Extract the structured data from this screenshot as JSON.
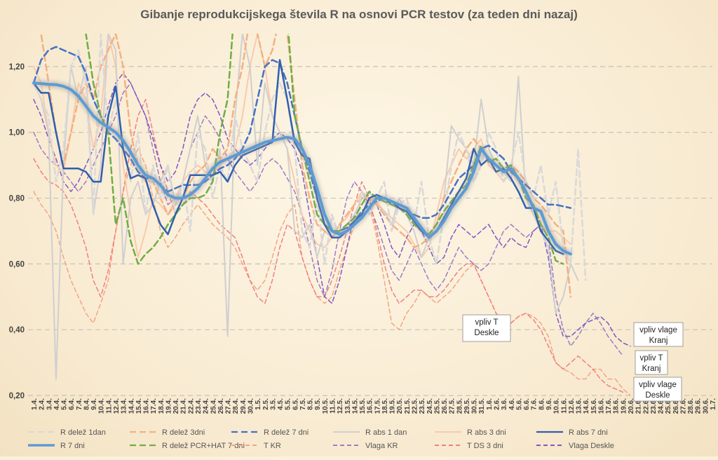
{
  "chart_data": {
    "type": "line",
    "title": "Gibanje reprodukcijskega števila R na osnovi PCR testov (za teden dni nazaj)",
    "ylim": [
      0.2,
      1.3
    ],
    "yticks": [
      0.2,
      0.4,
      0.6,
      0.8,
      1.0,
      1.2
    ],
    "ytick_labels": [
      "0,20",
      "0,40",
      "0,60",
      "0,80",
      "1,00",
      "1,20"
    ],
    "grid": "horizontal dashed",
    "x_labels": [
      "1.4.",
      "2.4.",
      "3.4.",
      "4.4.",
      "5.4.",
      "6.4.",
      "7.4.",
      "8.4.",
      "9.4.",
      "10.4.",
      "11.4.",
      "12.4.",
      "13.4.",
      "14.4.",
      "15.4.",
      "16.4.",
      "17.4.",
      "18.4.",
      "19.4.",
      "20.4.",
      "21.4.",
      "22.4.",
      "23.4.",
      "24.4.",
      "25.4.",
      "26.4.",
      "27.4.",
      "28.4.",
      "29.4.",
      "30.4.",
      "1.5.",
      "2.5.",
      "3.5.",
      "4.5.",
      "5.5.",
      "6.5.",
      "7.5.",
      "8.5.",
      "9.5.",
      "10.5.",
      "11.5.",
      "12.5.",
      "13.5.",
      "14.5.",
      "15.5.",
      "16.5.",
      "17.5.",
      "18.5.",
      "19.5.",
      "20.5.",
      "21.5.",
      "22.5.",
      "23.5.",
      "24.5.",
      "25.5.",
      "26.5.",
      "27.5.",
      "28.5.",
      "29.5.",
      "30.5.",
      "31.5.",
      "1.6.",
      "2.6.",
      "3.6.",
      "4.6.",
      "5.6.",
      "6.6.",
      "7.6.",
      "8.6.",
      "9.6.",
      "10.6.",
      "11.6.",
      "12.6.",
      "13.6.",
      "14.6.",
      "15.6.",
      "16.6.",
      "17.6.",
      "18.6.",
      "19.6.",
      "20.6.",
      "21.6.",
      "22.6.",
      "23.6.",
      "24.6.",
      "25.6.",
      "26.6.",
      "27.6.",
      "28.6.",
      "29.6.",
      "30.6.",
      "1.7."
    ],
    "legend_position": "bottom",
    "series": [
      {
        "name": "R delež 1dan",
        "color": "#d9d9d9",
        "dash": "dash",
        "width": 2.5,
        "values": [
          1.15,
          1.1,
          1.05,
          0.85,
          0.95,
          1.2,
          1.25,
          1.15,
          0.75,
          1.3,
          1.0,
          1.1,
          0.95,
          0.85,
          1.0,
          0.75,
          0.9,
          0.8,
          0.9,
          0.75,
          0.85,
          0.7,
          1.0,
          0.95,
          0.8,
          0.9,
          0.85,
          1.05,
          0.95,
          0.9,
          0.85,
          1.0,
          1.1,
          1.15,
          1.1,
          0.95,
          0.7,
          0.65,
          0.8,
          0.6,
          0.75,
          0.68,
          0.7,
          0.72,
          0.82,
          0.75,
          0.8,
          0.85,
          0.7,
          0.78,
          0.8,
          0.72,
          0.85,
          0.68,
          0.6,
          0.75,
          0.9,
          1.0,
          0.95,
          0.85,
          0.9,
          1.0,
          0.95,
          0.85,
          0.9,
          1.0,
          0.85,
          0.8,
          0.9,
          0.75,
          0.85,
          0.65,
          0.6,
          0.95,
          0.55
        ]
      },
      {
        "name": "R delež 3dni",
        "color": "#f4b183",
        "dash": "dash",
        "width": 2.5,
        "values": [
          1.35,
          1.3,
          1.15,
          1.0,
          0.9,
          1.0,
          1.1,
          1.15,
          1.1,
          1.2,
          1.25,
          1.3,
          1.2,
          1.0,
          0.9,
          0.85,
          0.85,
          0.8,
          0.75,
          0.78,
          0.8,
          0.85,
          0.88,
          0.9,
          0.95,
          0.92,
          0.95,
          1.1,
          1.2,
          1.35,
          1.3,
          1.2,
          1.25,
          1.35,
          1.3,
          1.1,
          0.9,
          0.8,
          0.72,
          0.7,
          0.68,
          0.72,
          0.75,
          0.78,
          0.8,
          0.8,
          0.78,
          0.75,
          0.72,
          0.7,
          0.68,
          0.65,
          0.66,
          0.68,
          0.72,
          0.8,
          0.85,
          0.9,
          0.95,
          0.98,
          0.95,
          0.92,
          0.9,
          0.88,
          0.9,
          0.88,
          0.85,
          0.8,
          0.78,
          0.75,
          0.72,
          0.7,
          0.5
        ]
      },
      {
        "name": "R delež 7 dni",
        "color": "#4472c4",
        "dash": "dash",
        "width": 2.5,
        "values": [
          1.15,
          1.22,
          1.25,
          1.26,
          1.25,
          1.24,
          1.23,
          1.18,
          1.1,
          1.05,
          1.0,
          0.98,
          0.95,
          0.92,
          0.88,
          0.86,
          0.86,
          0.84,
          0.82,
          0.83,
          0.84,
          0.84,
          0.84,
          0.85,
          0.87,
          0.89,
          0.9,
          0.92,
          0.95,
          1.0,
          1.1,
          1.2,
          1.22,
          1.21,
          1.15,
          1.05,
          0.95,
          0.88,
          0.8,
          0.72,
          0.7,
          0.7,
          0.71,
          0.73,
          0.76,
          0.78,
          0.79,
          0.8,
          0.78,
          0.77,
          0.76,
          0.75,
          0.74,
          0.74,
          0.75,
          0.78,
          0.82,
          0.86,
          0.88,
          0.9,
          0.95,
          0.96,
          0.94,
          0.92,
          0.88,
          0.86,
          0.84,
          0.82,
          0.8,
          0.78,
          0.78,
          0.775,
          0.77
        ]
      },
      {
        "name": "R abs 1 dan",
        "color": "#cfcfcf",
        "dash": "solid",
        "width": 2,
        "values": [
          1.15,
          1.1,
          1.0,
          0.25,
          0.9,
          1.2,
          1.1,
          1.2,
          0.75,
          0.9,
          1.3,
          1.25,
          0.6,
          0.8,
          0.85,
          0.75,
          0.78,
          0.85,
          0.9,
          0.78,
          0.85,
          0.95,
          1.05,
          0.9,
          0.85,
          0.95,
          0.38,
          1.05,
          1.3,
          1.2,
          0.9,
          1.15,
          1.05,
          1.0,
          0.95,
          0.7,
          0.68,
          0.72,
          0.62,
          0.7,
          0.68,
          0.7,
          0.72,
          0.75,
          0.8,
          0.82,
          0.78,
          0.76,
          0.72,
          0.8,
          0.75,
          0.7,
          0.62,
          0.68,
          0.72,
          0.8,
          1.02,
          0.98,
          0.95,
          0.9,
          1.1,
          0.95,
          0.9,
          0.88,
          0.85,
          1.17,
          0.8,
          0.75,
          0.7,
          0.65,
          0.45,
          0.5,
          0.6,
          0.55
        ]
      },
      {
        "name": "R abs 3 dni",
        "color": "#f8cbad",
        "dash": "solid",
        "width": 2,
        "values": [
          1.2,
          1.15,
          1.0,
          0.9,
          0.88,
          1.0,
          1.15,
          1.1,
          0.95,
          1.05,
          1.3,
          1.2,
          0.9,
          0.75,
          0.62,
          0.7,
          0.8,
          0.78,
          0.75,
          0.8,
          0.85,
          0.88,
          0.9,
          0.88,
          0.87,
          0.9,
          0.92,
          0.95,
          1.05,
          1.2,
          1.3,
          1.2,
          1.05,
          1.0,
          0.95,
          0.85,
          0.75,
          0.7,
          0.66,
          0.65,
          0.68,
          0.72,
          0.74,
          0.78,
          0.82,
          0.8,
          0.79,
          0.76,
          0.74,
          0.72,
          0.7,
          0.66,
          0.62,
          0.65,
          0.75,
          0.85,
          0.9,
          0.95,
          0.92,
          0.95,
          0.98,
          0.9,
          0.88,
          0.85,
          0.88,
          0.85,
          0.82,
          0.78,
          0.72,
          0.7,
          0.7,
          0.68,
          0.66
        ]
      },
      {
        "name": "R abs 7 dni",
        "color": "#2e5fae",
        "dash": "solid",
        "width": 2.5,
        "values": [
          1.15,
          1.12,
          1.12,
          1.0,
          0.89,
          0.89,
          0.89,
          0.88,
          0.85,
          0.85,
          1.05,
          1.14,
          0.95,
          0.86,
          0.87,
          0.86,
          0.78,
          0.72,
          0.69,
          0.75,
          0.8,
          0.87,
          0.87,
          0.87,
          0.87,
          0.88,
          0.85,
          0.9,
          0.93,
          0.94,
          0.95,
          0.96,
          0.97,
          1.22,
          1.1,
          0.97,
          0.93,
          0.92,
          0.8,
          0.72,
          0.68,
          0.68,
          0.7,
          0.73,
          0.75,
          0.8,
          0.81,
          0.8,
          0.79,
          0.77,
          0.76,
          0.73,
          0.7,
          0.68,
          0.7,
          0.74,
          0.78,
          0.82,
          0.86,
          0.95,
          0.9,
          0.92,
          0.88,
          0.89,
          0.86,
          0.82,
          0.77,
          0.77,
          0.7,
          0.67,
          0.64,
          0.63
        ]
      },
      {
        "name": "R 7 dni",
        "color": "#5b9bd5",
        "dash": "solid",
        "width": 4,
        "glow": true,
        "values": [
          1.15,
          1.148,
          1.146,
          1.145,
          1.14,
          1.13,
          1.11,
          1.08,
          1.05,
          1.03,
          1.015,
          1.0,
          0.975,
          0.94,
          0.9,
          0.87,
          0.86,
          0.84,
          0.81,
          0.8,
          0.8,
          0.81,
          0.83,
          0.86,
          0.89,
          0.91,
          0.92,
          0.93,
          0.94,
          0.95,
          0.96,
          0.97,
          0.975,
          0.98,
          0.985,
          0.98,
          0.95,
          0.9,
          0.83,
          0.75,
          0.7,
          0.69,
          0.7,
          0.72,
          0.74,
          0.77,
          0.8,
          0.8,
          0.79,
          0.78,
          0.77,
          0.74,
          0.71,
          0.68,
          0.7,
          0.73,
          0.77,
          0.8,
          0.83,
          0.88,
          0.95,
          0.92,
          0.9,
          0.88,
          0.89,
          0.86,
          0.82,
          0.77,
          0.76,
          0.7,
          0.66,
          0.64,
          0.63
        ]
      },
      {
        "name": "R delež PCR+HAT 7 dni",
        "color": "#70ad47",
        "dash": "dash",
        "width": 2.5,
        "values": [
          null,
          null,
          null,
          null,
          null,
          null,
          1.45,
          1.3,
          1.15,
          1.05,
          1.0,
          0.72,
          0.8,
          0.67,
          0.6,
          0.63,
          0.65,
          0.68,
          0.72,
          0.75,
          0.78,
          0.8,
          0.8,
          0.81,
          0.85,
          1.0,
          1.1,
          1.4,
          null,
          null,
          null,
          null,
          null,
          null,
          1.35,
          1.05,
          0.95,
          0.85,
          0.75,
          0.72,
          0.7,
          0.7,
          0.72,
          0.74,
          0.78,
          0.82,
          0.8,
          0.79,
          0.78,
          0.77,
          0.75,
          0.72,
          0.7,
          0.69,
          0.72,
          0.76,
          0.79,
          0.82,
          0.84,
          0.9,
          0.96,
          0.91,
          0.92,
          0.89,
          0.9,
          0.86,
          0.8,
          0.78,
          0.72,
          0.68,
          0.61,
          0.6
        ]
      },
      {
        "name": "T KR",
        "color": "#f4a582",
        "dash": "dash",
        "width": 1.5,
        "values": [
          0.82,
          0.78,
          0.75,
          0.7,
          0.62,
          0.55,
          0.5,
          0.45,
          0.42,
          0.48,
          0.55,
          0.7,
          0.82,
          0.9,
          0.95,
          0.9,
          0.8,
          0.7,
          0.65,
          0.68,
          0.72,
          0.75,
          0.78,
          0.75,
          0.72,
          0.7,
          0.68,
          0.65,
          0.6,
          0.55,
          0.52,
          0.55,
          0.62,
          0.7,
          0.75,
          0.78,
          0.62,
          0.55,
          0.5,
          0.48,
          0.5,
          0.58,
          0.65,
          0.72,
          0.8,
          0.78,
          0.68,
          0.55,
          0.42,
          0.4,
          0.45,
          0.48,
          0.52,
          0.5,
          0.48,
          0.5,
          0.52,
          0.55,
          0.58,
          0.6,
          0.55,
          0.5,
          0.45,
          0.42,
          0.42,
          0.44,
          0.45,
          0.44,
          0.42,
          0.38,
          0.3,
          0.28,
          0.27,
          0.25,
          0.25,
          0.28,
          0.28,
          0.25,
          0.25,
          0.22,
          0.2
        ]
      },
      {
        "name": "Vlaga KR",
        "color": "#9e7bc4",
        "dash": "dash",
        "width": 1.5,
        "values": [
          1.0,
          0.95,
          0.92,
          0.9,
          0.88,
          0.85,
          0.82,
          0.85,
          0.9,
          0.95,
          1.0,
          1.05,
          1.12,
          1.15,
          1.1,
          1.05,
          0.95,
          0.85,
          0.78,
          0.8,
          0.85,
          0.95,
          1.0,
          1.05,
          1.02,
          0.98,
          0.92,
          0.88,
          0.85,
          0.82,
          0.85,
          0.9,
          0.92,
          0.9,
          0.86,
          0.82,
          0.75,
          0.65,
          0.55,
          0.5,
          0.58,
          0.7,
          0.8,
          0.85,
          0.82,
          0.78,
          0.72,
          0.65,
          0.58,
          0.55,
          0.6,
          0.65,
          0.6,
          0.55,
          0.52,
          0.55,
          0.6,
          0.65,
          0.62,
          0.6,
          0.58,
          0.6,
          0.65,
          0.7,
          0.72,
          0.7,
          0.68,
          0.7,
          0.72,
          0.68,
          0.5,
          0.4,
          0.35,
          0.38,
          0.42,
          0.45,
          0.42,
          0.38,
          0.35,
          0.32
        ]
      },
      {
        "name": "T DS 3 dni",
        "color": "#f08080",
        "dash": "dash",
        "width": 1.5,
        "values": [
          0.92,
          0.88,
          0.85,
          0.84,
          0.82,
          0.78,
          0.72,
          0.65,
          0.55,
          0.5,
          0.58,
          0.7,
          0.82,
          0.95,
          1.05,
          1.1,
          1.0,
          0.9,
          0.82,
          0.75,
          0.78,
          0.82,
          0.8,
          0.78,
          0.75,
          0.72,
          0.7,
          0.68,
          0.62,
          0.55,
          0.5,
          0.48,
          0.55,
          0.65,
          0.72,
          0.7,
          0.62,
          0.55,
          0.5,
          0.5,
          0.55,
          0.62,
          0.7,
          0.78,
          0.85,
          0.8,
          0.7,
          0.6,
          0.52,
          0.48,
          0.5,
          0.52,
          0.52,
          0.5,
          0.5,
          0.52,
          0.55,
          0.58,
          0.6,
          0.6,
          0.55,
          0.5,
          0.45,
          0.42,
          0.42,
          0.44,
          0.45,
          0.43,
          0.4,
          0.35,
          0.3,
          0.28,
          0.3,
          0.32,
          0.3,
          0.28,
          0.25,
          0.23,
          0.22,
          0.21
        ]
      },
      {
        "name": "Vlaga Deskle",
        "color": "#7e57c2",
        "dash": "dash",
        "width": 1.5,
        "values": [
          1.1,
          1.05,
          0.98,
          0.92,
          0.85,
          0.82,
          0.85,
          0.9,
          0.95,
          1.0,
          1.08,
          1.15,
          1.18,
          1.15,
          1.1,
          1.05,
          0.98,
          0.9,
          0.85,
          0.88,
          0.95,
          1.05,
          1.1,
          1.12,
          1.1,
          1.05,
          0.98,
          0.95,
          0.92,
          0.9,
          0.92,
          0.95,
          0.98,
          1.0,
          0.98,
          0.95,
          0.88,
          0.75,
          0.62,
          0.5,
          0.48,
          0.55,
          0.65,
          0.75,
          0.8,
          0.82,
          0.78,
          0.72,
          0.65,
          0.62,
          0.68,
          0.72,
          0.7,
          0.65,
          0.6,
          0.62,
          0.68,
          0.72,
          0.7,
          0.68,
          0.7,
          0.72,
          0.68,
          0.65,
          0.68,
          0.66,
          0.65,
          0.7,
          0.72,
          0.62,
          0.45,
          0.38,
          0.38,
          0.4,
          0.42,
          0.43,
          0.44,
          0.42,
          0.38,
          0.36,
          0.35
        ]
      }
    ],
    "annotations": [
      {
        "text": "vpliv T\nDeskle"
      },
      {
        "text": "vpliv vlage\nKranj"
      },
      {
        "text": "vpliv T\nKranj"
      },
      {
        "text": "vpliv vlage\nDeskle"
      }
    ]
  }
}
